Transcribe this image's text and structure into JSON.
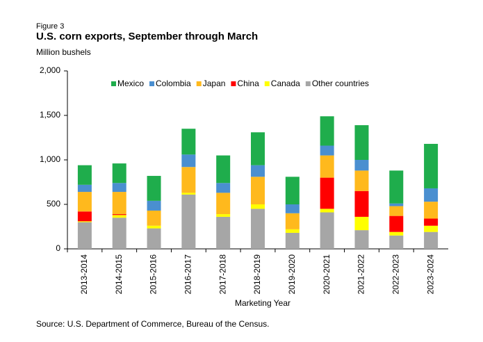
{
  "chart_data": {
    "type": "stacked_bar",
    "figure_label": "Figure 3",
    "title": "U.S. corn exports, September through March",
    "y_label": "Million bushels",
    "x_label": "Marketing Year",
    "source": "Source: U.S. Department of Commerce, Bureau of the Census.",
    "categories": [
      "2013-2014",
      "2014-2015",
      "2015-2016",
      "2016-2017",
      "2017-2018",
      "2018-2019",
      "2019-2020",
      "2020-2021",
      "2021-2022",
      "2022-2023",
      "2023-2024"
    ],
    "series": [
      {
        "name": "Mexico",
        "color": "#1fad4c",
        "values": [
          220,
          220,
          280,
          290,
          310,
          370,
          310,
          330,
          390,
          370,
          500
        ]
      },
      {
        "name": "Colombia",
        "color": "#4a8fd0",
        "values": [
          80,
          100,
          110,
          140,
          110,
          130,
          100,
          110,
          120,
          30,
          150
        ]
      },
      {
        "name": "Japan",
        "color": "#ffb91d",
        "values": [
          220,
          250,
          170,
          290,
          240,
          310,
          180,
          250,
          230,
          110,
          190
        ]
      },
      {
        "name": "China",
        "color": "#ff0000",
        "values": [
          110,
          10,
          0,
          0,
          0,
          0,
          0,
          350,
          290,
          180,
          80
        ]
      },
      {
        "name": "Canada",
        "color": "#ffff00",
        "values": [
          10,
          30,
          30,
          20,
          30,
          50,
          40,
          40,
          150,
          40,
          70
        ]
      },
      {
        "name": "Other countries",
        "color": "#a6a6a6",
        "values": [
          300,
          350,
          230,
          610,
          360,
          450,
          180,
          410,
          210,
          150,
          190
        ]
      }
    ],
    "ylim": [
      0,
      2000
    ],
    "yticks": [
      0,
      500,
      {
        "value": 1000,
        "label": "1,000"
      },
      {
        "value": 1500,
        "label": "1,500"
      },
      {
        "value": 2000,
        "label": "2,000"
      }
    ]
  }
}
